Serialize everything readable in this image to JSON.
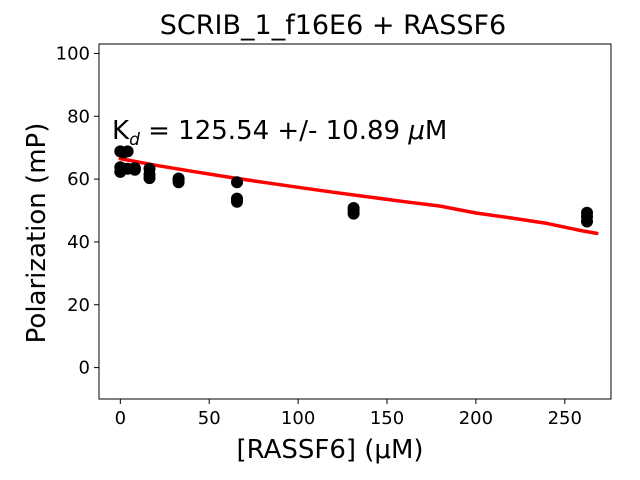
{
  "chart_data": {
    "type": "scatter",
    "title": "SCRIB_1_f16E6 + RASSF6",
    "xlabel": "[RASSF6] (μM)",
    "ylabel": "Polarization (mP)",
    "xlim": [
      -12,
      276
    ],
    "ylim": [
      -10,
      103
    ],
    "xticks": [
      0,
      50,
      100,
      150,
      200,
      250
    ],
    "yticks": [
      0,
      20,
      40,
      60,
      80,
      100
    ],
    "grid": false,
    "annotation": {
      "main": "K",
      "sub": "d",
      "rest": " = 125.54 +/- 10.89 ",
      "mu": "μ",
      "unit": "M"
    },
    "series": [
      {
        "color": "#000000",
        "points": [
          {
            "x": 0,
            "y": 68.8
          },
          {
            "x": 0,
            "y": 63.8
          },
          {
            "x": 0,
            "y": 62.3
          },
          {
            "x": 2,
            "y": 68.5
          },
          {
            "x": 2,
            "y": 63.3
          },
          {
            "x": 4.1,
            "y": 68.8
          },
          {
            "x": 4.1,
            "y": 63.3
          },
          {
            "x": 8.2,
            "y": 63.5
          },
          {
            "x": 8.2,
            "y": 63.0
          },
          {
            "x": 16.4,
            "y": 63.3
          },
          {
            "x": 16.4,
            "y": 61.5
          },
          {
            "x": 16.4,
            "y": 60.3
          },
          {
            "x": 32.8,
            "y": 60.2
          },
          {
            "x": 32.8,
            "y": 59.7
          },
          {
            "x": 32.8,
            "y": 59.0
          },
          {
            "x": 65.6,
            "y": 59.0
          },
          {
            "x": 65.6,
            "y": 53.8
          },
          {
            "x": 65.6,
            "y": 52.8
          },
          {
            "x": 131.2,
            "y": 50.8
          },
          {
            "x": 131.2,
            "y": 50.0
          },
          {
            "x": 131.2,
            "y": 49.0
          },
          {
            "x": 262.5,
            "y": 49.3
          },
          {
            "x": 262.5,
            "y": 48.0
          },
          {
            "x": 262.5,
            "y": 46.5
          }
        ]
      }
    ],
    "fit": {
      "color": "#ff0000",
      "x": [
        0,
        20,
        40,
        60,
        80,
        100,
        120,
        140,
        160,
        180,
        200,
        220,
        240,
        260,
        268
      ],
      "y": [
        66.5,
        64.4,
        62.5,
        60.7,
        59.0,
        57.4,
        55.8,
        54.3,
        52.8,
        51.4,
        49.2,
        47.6,
        45.9,
        43.5,
        42.7
      ]
    }
  }
}
